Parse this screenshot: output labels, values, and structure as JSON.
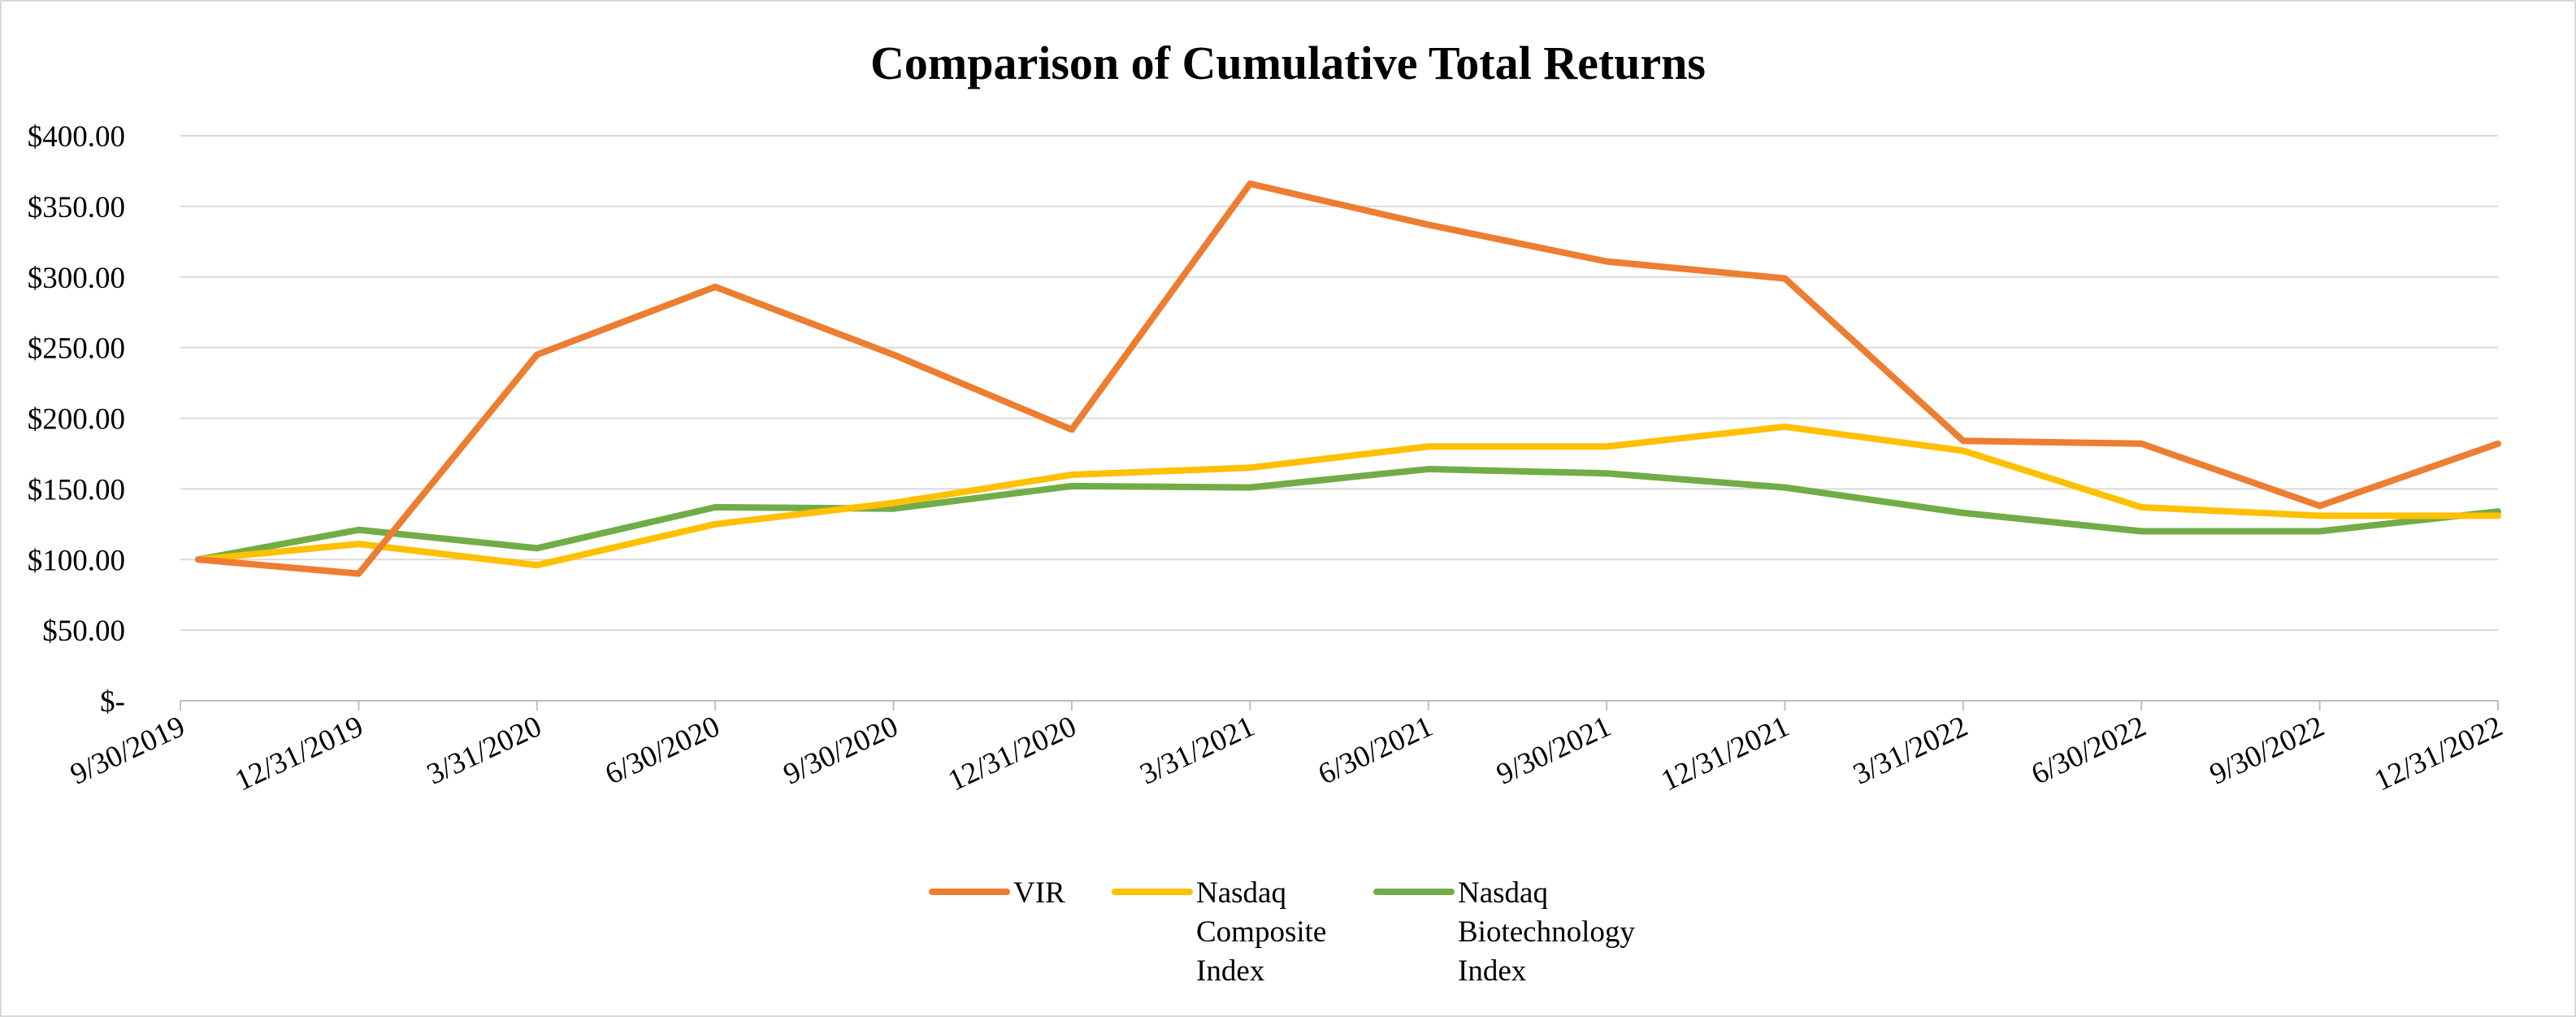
{
  "chart_data": {
    "type": "line",
    "title": "Comparison of Cumulative Total Returns",
    "xlabel": "",
    "ylabel": "",
    "ylim": [
      0,
      400
    ],
    "y_ticks": [
      0,
      50,
      100,
      150,
      200,
      250,
      300,
      350,
      400
    ],
    "y_tick_labels": [
      "$-",
      "$50.00",
      "$100.00",
      "$150.00",
      "$200.00",
      "$250.00",
      "$300.00",
      "$350.00",
      "$400.00"
    ],
    "grid": true,
    "legend_position": "bottom-center",
    "categories": [
      "9/30/2019",
      "12/31/2019",
      "3/31/2020",
      "6/30/2020",
      "9/30/2020",
      "12/31/2020",
      "3/31/2021",
      "6/30/2021",
      "9/30/2021",
      "12/31/2021",
      "3/31/2022",
      "6/30/2022",
      "9/30/2022",
      "12/31/2022"
    ],
    "series": [
      {
        "name": "VIR",
        "legend_lines": [
          "VIR"
        ],
        "color": "#ED7D31",
        "values": [
          100,
          90,
          245,
          293,
          245,
          192,
          366,
          337,
          311,
          299,
          184,
          182,
          138,
          182
        ]
      },
      {
        "name": "Nasdaq Composite Index",
        "legend_lines": [
          "Nasdaq",
          "Composite",
          "Index"
        ],
        "color": "#FFC000",
        "values": [
          100,
          111,
          96,
          125,
          140,
          160,
          165,
          180,
          180,
          194,
          177,
          137,
          131,
          131
        ]
      },
      {
        "name": "Nasdaq Biotechnology Index",
        "legend_lines": [
          "Nasdaq",
          "Biotechnology",
          "Index"
        ],
        "color": "#70AD47",
        "values": [
          100,
          121,
          108,
          137,
          136,
          152,
          151,
          164,
          161,
          151,
          133,
          120,
          120,
          134
        ]
      }
    ]
  }
}
